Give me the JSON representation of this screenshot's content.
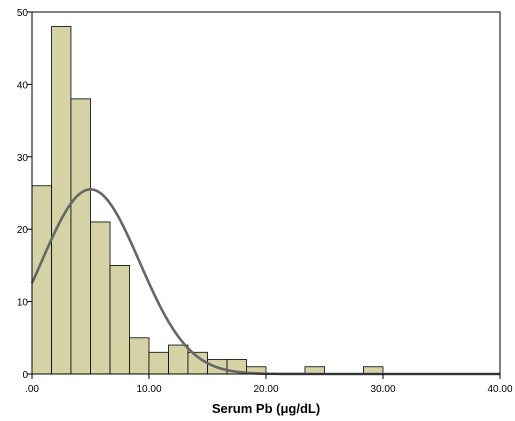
{
  "chart_data": {
    "type": "bar",
    "subtype": "histogram",
    "title": "",
    "xlabel": "Serum Pb (μg/dL)",
    "ylabel": "",
    "xlim": [
      0,
      40
    ],
    "ylim": [
      0,
      50
    ],
    "x_ticks": [
      0,
      10,
      20,
      30,
      40
    ],
    "x_tick_labels": [
      ".00",
      "10.00",
      "20.00",
      "30.00",
      "40.00"
    ],
    "y_ticks": [
      0,
      10,
      20,
      30,
      40,
      50
    ],
    "y_tick_labels": [
      "0",
      "10",
      "20",
      "30",
      "40",
      "50"
    ],
    "bins": [
      {
        "start": 0.0,
        "end": 1.67,
        "count": 26
      },
      {
        "start": 1.67,
        "end": 3.33,
        "count": 48
      },
      {
        "start": 3.33,
        "end": 5.0,
        "count": 38
      },
      {
        "start": 5.0,
        "end": 6.67,
        "count": 21
      },
      {
        "start": 6.67,
        "end": 8.33,
        "count": 15
      },
      {
        "start": 8.33,
        "end": 10.0,
        "count": 5
      },
      {
        "start": 10.0,
        "end": 11.67,
        "count": 3
      },
      {
        "start": 11.67,
        "end": 13.33,
        "count": 4
      },
      {
        "start": 13.33,
        "end": 15.0,
        "count": 3
      },
      {
        "start": 15.0,
        "end": 16.67,
        "count": 2
      },
      {
        "start": 16.67,
        "end": 18.33,
        "count": 2
      },
      {
        "start": 18.33,
        "end": 20.0,
        "count": 1
      },
      {
        "start": 23.33,
        "end": 25.0,
        "count": 1
      },
      {
        "start": 28.33,
        "end": 30.0,
        "count": 1
      }
    ],
    "normal_curve": {
      "mean": 5.0,
      "sd": 4.2,
      "peak": 25.5
    },
    "grid": false,
    "legend": "none",
    "colors": {
      "bar_fill": "#d5d2a5",
      "bar_stroke": "#000000",
      "curve": "#666666",
      "frame": "#000000"
    }
  }
}
